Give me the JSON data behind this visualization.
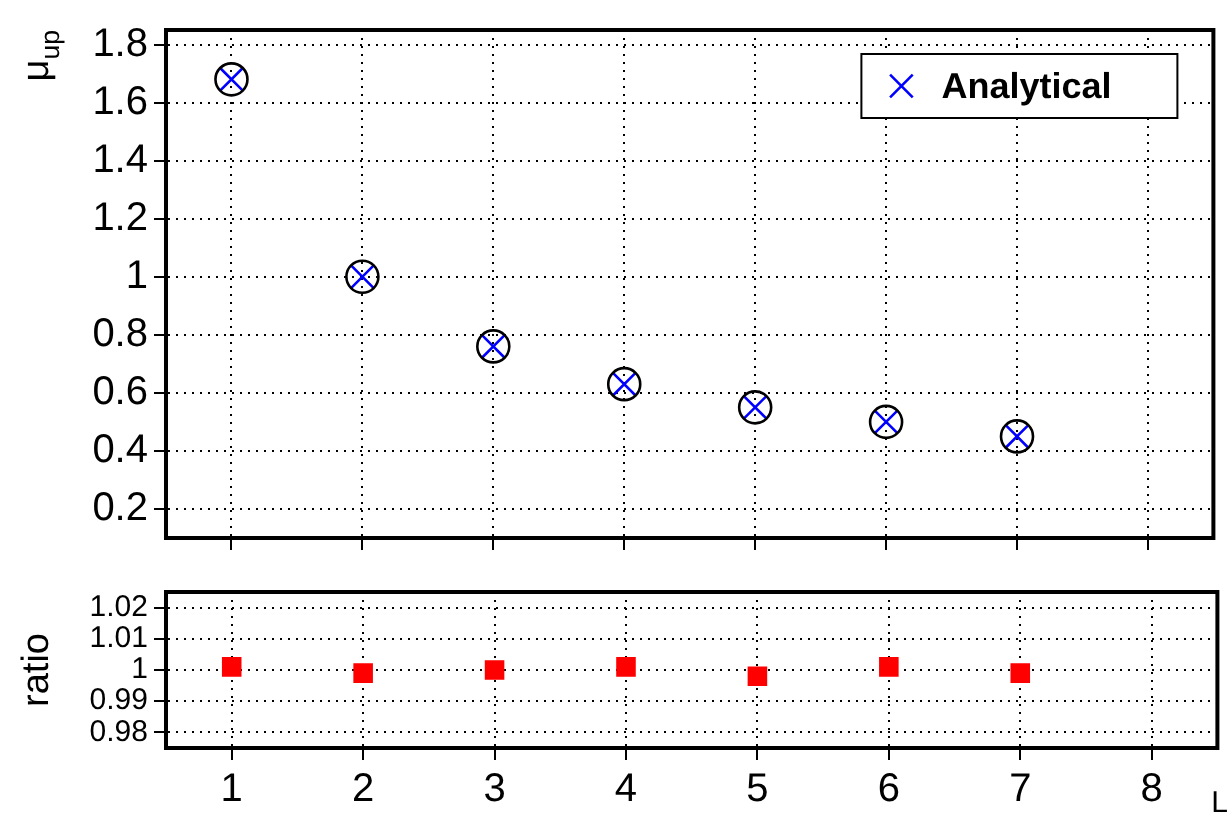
{
  "chart_data": [
    {
      "type": "scatter",
      "ylabel": "μ$_{up}$",
      "x": [
        1,
        2,
        3,
        4,
        5,
        6,
        7
      ],
      "xlim": [
        0.5,
        8.5
      ],
      "xticks": [
        1,
        2,
        3,
        4,
        5,
        6,
        7,
        8
      ],
      "ylim": [
        0.1,
        1.85
      ],
      "yticks": [
        0.2,
        0.4,
        0.6,
        0.8,
        1,
        1.2,
        1.4,
        1.6,
        1.8
      ],
      "grid": true,
      "legend": "top right",
      "tick_labels": "y",
      "series": [
        {
          "color": "#000000",
          "marker": "circle",
          "values": [
            1.68,
            1.0,
            0.76,
            0.63,
            0.55,
            0.5,
            0.45
          ]
        },
        {
          "name": "Analytical",
          "color": "#0000ff",
          "marker": "cross",
          "values": [
            1.68,
            1.0,
            0.76,
            0.63,
            0.55,
            0.5,
            0.45
          ]
        }
      ]
    },
    {
      "type": "scatter",
      "ylabel": "ratio",
      "xlabel": "L",
      "x": [
        1,
        2,
        3,
        4,
        5,
        6,
        7
      ],
      "xlim": [
        0.5,
        8.5
      ],
      "xticks": [
        1,
        2,
        3,
        4,
        5,
        6,
        7,
        8
      ],
      "ylim": [
        0.975,
        1.025
      ],
      "yticks": [
        0.98,
        0.99,
        1,
        1.01,
        1.02
      ],
      "grid": true,
      "series": [
        {
          "color": "#ff0000",
          "marker": "square",
          "values": [
            1.001,
            0.999,
            1.0,
            1.001,
            0.998,
            1.001,
            0.999
          ]
        }
      ]
    }
  ]
}
